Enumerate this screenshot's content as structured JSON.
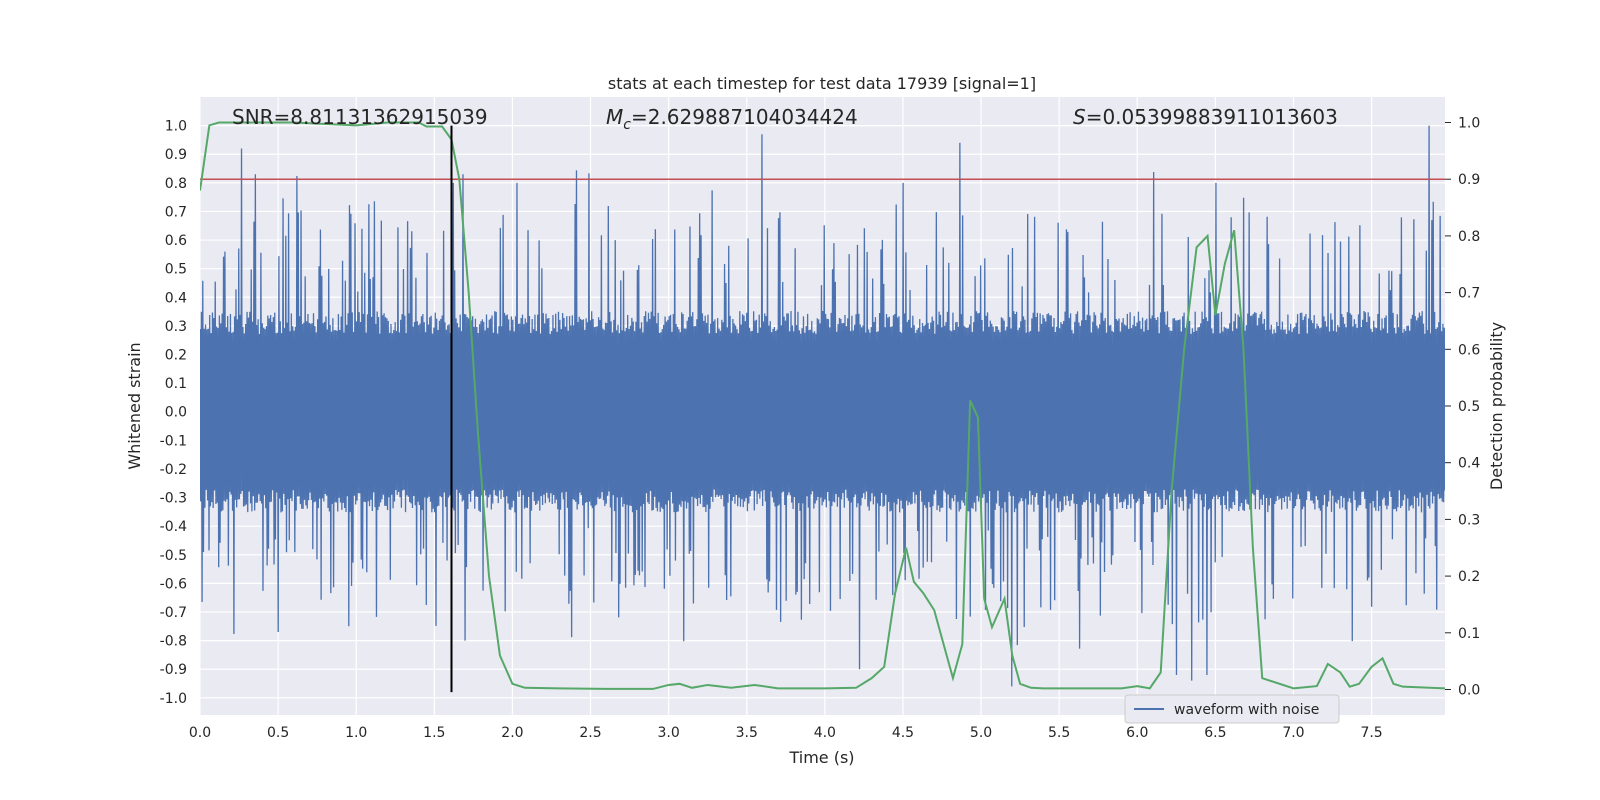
{
  "chart_data": {
    "type": "line",
    "title": "stats at each timestep for test data 17939 [signal=1]",
    "xlabel": "Time (s)",
    "ylabel_left": "Whitened strain",
    "ylabel_right": "Detection probability",
    "xlim": [
      0.0,
      7.97
    ],
    "ylim_left": [
      -1.06,
      1.1
    ],
    "ylim_right": [
      -0.045,
      1.045
    ],
    "x_ticks": [
      "0.0",
      "0.5",
      "1.0",
      "1.5",
      "2.0",
      "2.5",
      "3.0",
      "3.5",
      "4.0",
      "4.5",
      "5.0",
      "5.5",
      "6.0",
      "6.5",
      "7.0",
      "7.5"
    ],
    "x_tick_values": [
      0.0,
      0.5,
      1.0,
      1.5,
      2.0,
      2.5,
      3.0,
      3.5,
      4.0,
      4.5,
      5.0,
      5.5,
      6.0,
      6.5,
      7.0,
      7.5
    ],
    "y_left_ticks": [
      "1.0",
      "0.9",
      "0.8",
      "0.7",
      "0.6",
      "0.5",
      "0.4",
      "0.3",
      "0.2",
      "0.1",
      "0.0",
      "-0.1",
      "-0.2",
      "-0.3",
      "-0.4",
      "-0.5",
      "-0.6",
      "-0.7",
      "-0.8",
      "-0.9",
      "-1.0"
    ],
    "y_left_tick_values": [
      1.0,
      0.9,
      0.8,
      0.7,
      0.6,
      0.5,
      0.4,
      0.3,
      0.2,
      0.1,
      0.0,
      -0.1,
      -0.2,
      -0.3,
      -0.4,
      -0.5,
      -0.6,
      -0.7,
      -0.8,
      -0.9,
      -1.0
    ],
    "y_right_ticks": [
      "1.0",
      "0.9",
      "0.8",
      "0.7",
      "0.6",
      "0.5",
      "0.4",
      "0.3",
      "0.2",
      "0.1",
      "0.0"
    ],
    "y_right_tick_values": [
      1.0,
      0.9,
      0.8,
      0.7,
      0.6,
      0.5,
      0.4,
      0.3,
      0.2,
      0.1,
      0.0
    ],
    "annotations": {
      "snr": "SNR=8.81131362915039",
      "mc_symbol": "M",
      "mc_sub": "c",
      "mc_value": "=2.629887104034424",
      "s_symbol": "S",
      "s_value": "=0.05399883911013603"
    },
    "threshold": {
      "axis": "right",
      "value": 0.9,
      "color": "#c44e52"
    },
    "marker_line": {
      "x": 1.61,
      "color": "#000000"
    },
    "legend": {
      "label": "waveform with noise",
      "position": "lower-right"
    },
    "series": [
      {
        "name": "waveform with noise",
        "axis": "left",
        "color": "#4c72b0",
        "generator": "noise",
        "seed": 17939,
        "x_range": [
          0.0,
          7.97
        ],
        "n_samples": 1800,
        "body_amplitude": 0.32,
        "peak_spikes": [
          {
            "x": 0.27,
            "y": 0.92
          },
          {
            "x": 0.35,
            "y": 0.83
          },
          {
            "x": 1.62,
            "y": 0.8
          },
          {
            "x": 1.68,
            "y": 0.83
          },
          {
            "x": 2.03,
            "y": 0.8
          },
          {
            "x": 3.6,
            "y": 0.97
          },
          {
            "x": 4.5,
            "y": 0.8
          },
          {
            "x": 4.86,
            "y": 0.94
          },
          {
            "x": 6.5,
            "y": 0.8
          },
          {
            "x": 7.87,
            "y": 1.0
          }
        ],
        "trough_spikes": [
          {
            "x": 0.5,
            "y": -0.77
          },
          {
            "x": 0.95,
            "y": -0.75
          },
          {
            "x": 1.7,
            "y": -0.8
          },
          {
            "x": 4.22,
            "y": -0.9
          },
          {
            "x": 5.2,
            "y": -0.96
          },
          {
            "x": 6.25,
            "y": -0.92
          },
          {
            "x": 6.35,
            "y": -0.94
          },
          {
            "x": 6.45,
            "y": -0.92
          }
        ]
      },
      {
        "name": "detection probability",
        "axis": "right",
        "color": "#55a868",
        "x": [
          0.0,
          0.06,
          0.12,
          0.3,
          0.6,
          1.0,
          1.2,
          1.4,
          1.45,
          1.55,
          1.61,
          1.66,
          1.72,
          1.78,
          1.85,
          1.92,
          2.0,
          2.08,
          2.3,
          2.6,
          2.9,
          3.0,
          3.07,
          3.15,
          3.25,
          3.4,
          3.55,
          3.7,
          4.0,
          4.2,
          4.3,
          4.38,
          4.45,
          4.52,
          4.57,
          4.63,
          4.7,
          4.78,
          4.82,
          4.88,
          4.93,
          4.98,
          5.02,
          5.07,
          5.15,
          5.2,
          5.25,
          5.32,
          5.4,
          5.6,
          5.9,
          6.0,
          6.08,
          6.15,
          6.22,
          6.3,
          6.38,
          6.45,
          6.5,
          6.56,
          6.62,
          6.68,
          6.74,
          6.8,
          7.0,
          7.15,
          7.22,
          7.3,
          7.36,
          7.42,
          7.5,
          7.57,
          7.64,
          7.7,
          7.97
        ],
        "y": [
          0.88,
          0.995,
          1.0,
          1.0,
          1.0,
          0.995,
          1.0,
          1.0,
          0.993,
          0.993,
          0.97,
          0.9,
          0.7,
          0.45,
          0.2,
          0.06,
          0.01,
          0.003,
          0.002,
          0.001,
          0.001,
          0.008,
          0.01,
          0.003,
          0.008,
          0.003,
          0.008,
          0.002,
          0.002,
          0.003,
          0.02,
          0.04,
          0.17,
          0.25,
          0.19,
          0.17,
          0.14,
          0.06,
          0.02,
          0.08,
          0.51,
          0.48,
          0.16,
          0.11,
          0.16,
          0.06,
          0.01,
          0.003,
          0.002,
          0.002,
          0.002,
          0.006,
          0.002,
          0.03,
          0.35,
          0.6,
          0.78,
          0.8,
          0.66,
          0.75,
          0.81,
          0.6,
          0.25,
          0.02,
          0.002,
          0.006,
          0.045,
          0.03,
          0.005,
          0.01,
          0.04,
          0.055,
          0.01,
          0.005,
          0.002
        ]
      }
    ]
  }
}
